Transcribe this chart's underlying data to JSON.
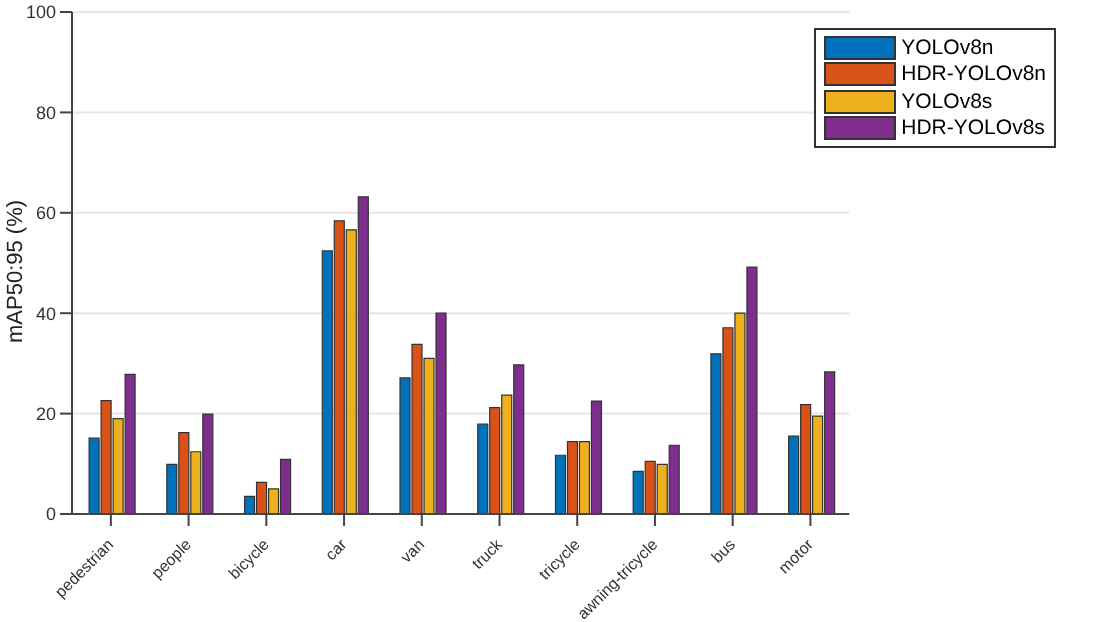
{
  "chart_data": {
    "type": "bar",
    "ylabel": "mAP50:95 (%)",
    "categories": [
      "pedestrian",
      "people",
      "bicycle",
      "car",
      "van",
      "truck",
      "tricycle",
      "awning-tricycle",
      "bus",
      "motor"
    ],
    "series": [
      {
        "name": "YOLOv8n",
        "color": "#0072bd",
        "values": [
          15.1,
          9.9,
          3.5,
          52.4,
          27.1,
          17.9,
          11.7,
          8.5,
          31.9,
          15.5
        ]
      },
      {
        "name": "HDR-YOLOv8n",
        "color": "#d95319",
        "values": [
          22.6,
          16.2,
          6.3,
          58.4,
          33.8,
          21.2,
          14.4,
          10.5,
          37.1,
          21.8
        ]
      },
      {
        "name": "YOLOv8s",
        "color": "#edb120",
        "values": [
          19.0,
          12.4,
          5.0,
          56.6,
          31.0,
          23.7,
          14.4,
          9.9,
          40.0,
          19.5
        ]
      },
      {
        "name": "HDR-YOLOv8s",
        "color": "#7e2f8e",
        "values": [
          27.8,
          19.9,
          10.9,
          63.2,
          40.0,
          29.7,
          22.5,
          13.7,
          49.2,
          28.3
        ]
      }
    ],
    "ylim": [
      0,
      100
    ],
    "yticks": [
      0,
      20,
      40,
      60,
      80,
      100
    ],
    "grid": "y",
    "legend": "top right"
  }
}
